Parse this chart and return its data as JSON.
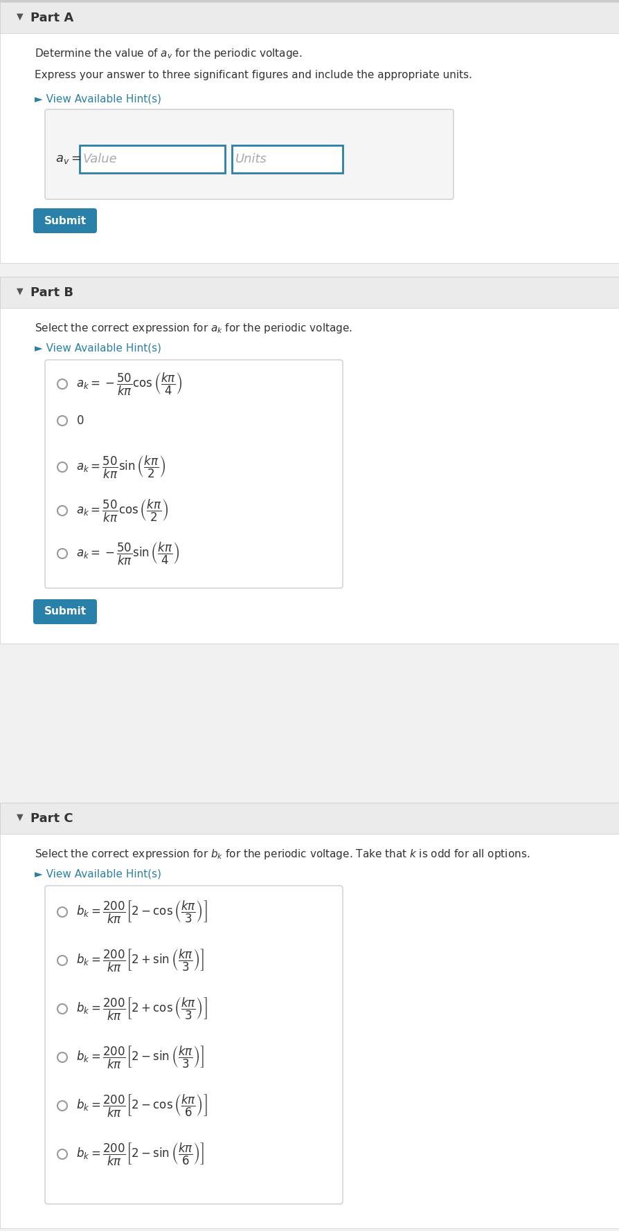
{
  "bg_color": "#f0f0f0",
  "white": "#ffffff",
  "teal_blue": "#2a7fa5",
  "dark_text": "#333333",
  "header_bg": "#e8e8e8",
  "submit_bg": "#2980a8",
  "partA": {
    "header": "Part A",
    "line1": "Determine the value of $a_v$ for the periodic voltage.",
    "line2": "Express your answer to three significant figures and include the appropriate units.",
    "hint": "► View Available Hint(s)",
    "label": "$a_v =$",
    "value_placeholder": "Value",
    "units_placeholder": "Units"
  },
  "partB": {
    "header": "Part B",
    "line1": "Select the correct expression for $a_k$ for the periodic voltage.",
    "hint": "► View Available Hint(s)",
    "options": [
      "$a_k = -\\dfrac{50}{k\\pi}\\cos\\left(\\dfrac{k\\pi}{4}\\right)$",
      "$0$",
      "$a_k = \\dfrac{50}{k\\pi}\\sin\\left(\\dfrac{k\\pi}{2}\\right)$",
      "$a_k = \\dfrac{50}{k\\pi}\\cos\\left(\\dfrac{k\\pi}{2}\\right)$",
      "$a_k = -\\dfrac{50}{k\\pi}\\sin\\left(\\dfrac{k\\pi}{4}\\right)$"
    ]
  },
  "partC": {
    "header": "Part C",
    "line1": "Select the correct expression for $b_k$ for the periodic voltage. Take that $k$ is odd for all options.",
    "hint": "► View Available Hint(s)",
    "options": [
      "$b_k = \\dfrac{200}{k\\pi}\\left[2 - \\cos\\left(\\dfrac{k\\pi}{3}\\right)\\right]$",
      "$b_k = \\dfrac{200}{k\\pi}\\left[2 + \\sin\\left(\\dfrac{k\\pi}{3}\\right)\\right]$",
      "$b_k = \\dfrac{200}{k\\pi}\\left[2 + \\cos\\left(\\dfrac{k\\pi}{3}\\right)\\right]$",
      "$b_k = \\dfrac{200}{k\\pi}\\left[2 - \\sin\\left(\\dfrac{k\\pi}{3}\\right)\\right]$",
      "$b_k = \\dfrac{200}{k\\pi}\\left[2 - \\cos\\left(\\dfrac{k\\pi}{6}\\right)\\right]$",
      "$b_k = \\dfrac{200}{k\\pi}\\left[2 - \\sin\\left(\\dfrac{k\\pi}{6}\\right)\\right]$"
    ]
  }
}
